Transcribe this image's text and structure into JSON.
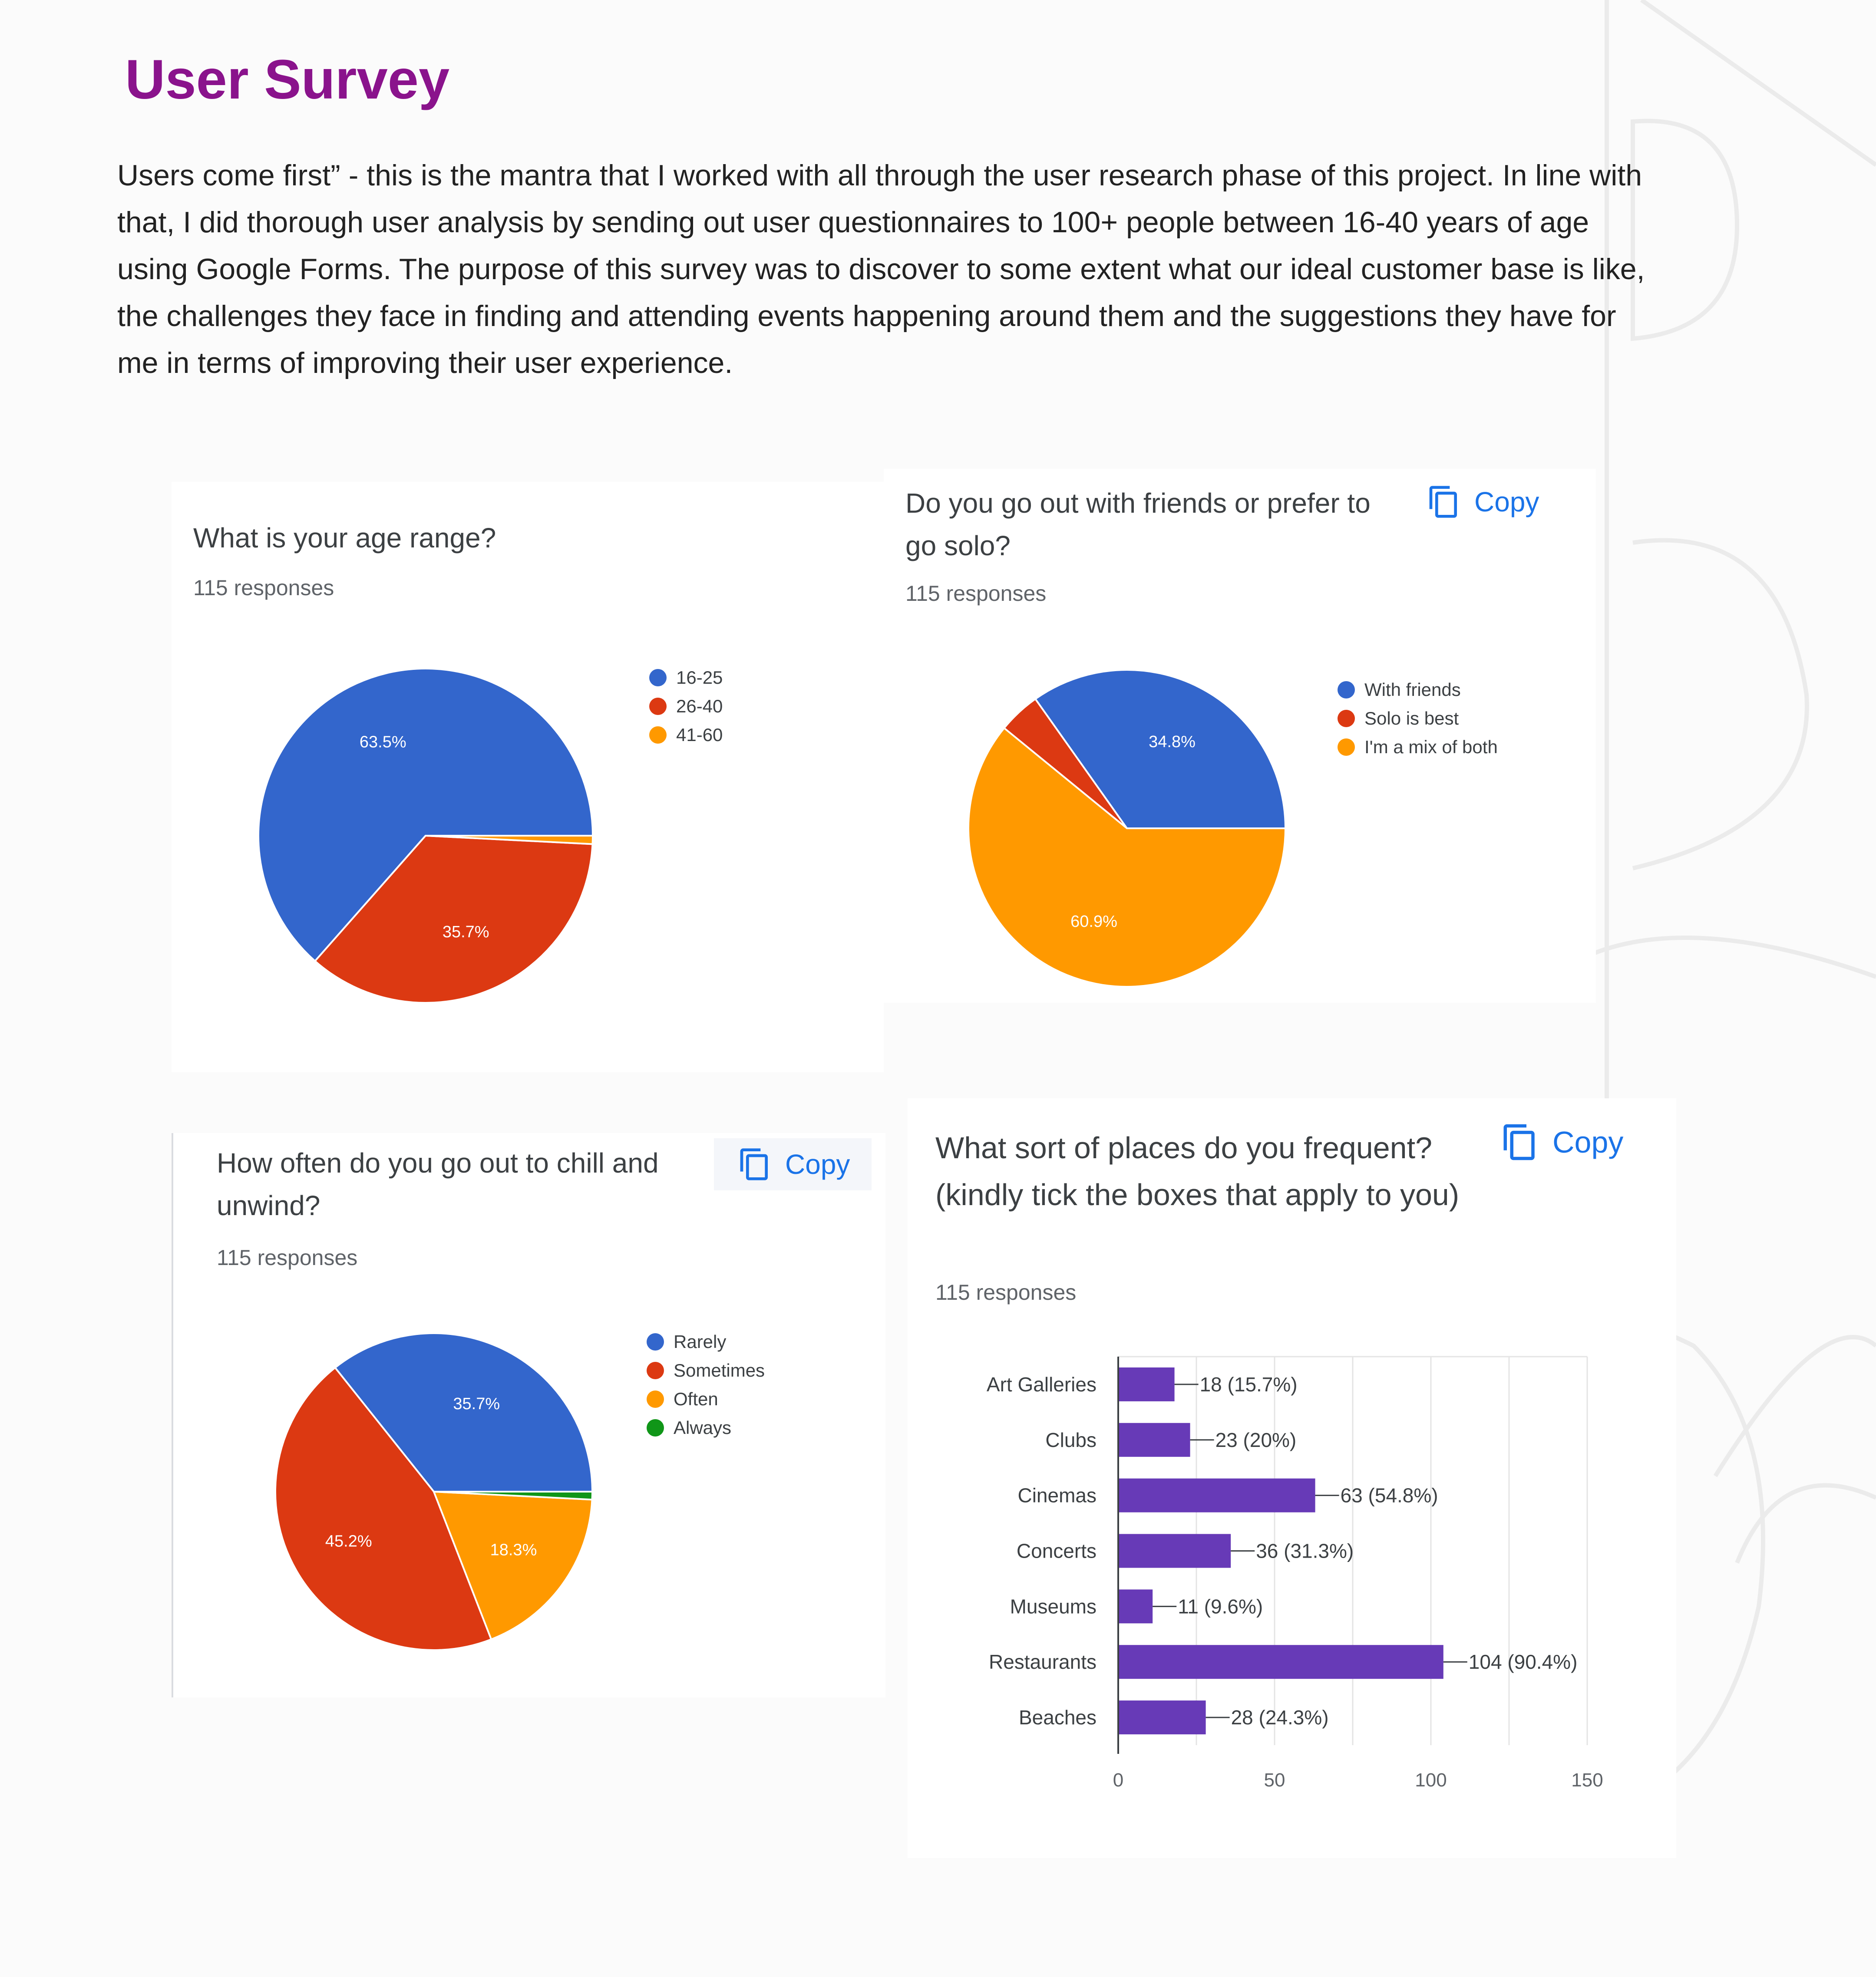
{
  "page": {
    "title": "User Survey",
    "intro": "Users come first” - this is the mantra that I worked with all through the user research phase of this project. In line with that, I did thorough user analysis by sending out user questionnaires to 100+ people between 16-40 years of age using Google Forms. The purpose of this survey was to discover to some extent what our ideal customer base is like, the challenges they face in finding and attending events happening around them and the suggestions they have for me in terms of improving their user experience."
  },
  "copy_label": "Copy",
  "icons": {
    "copy": "copy-icon"
  },
  "chart_data": [
    {
      "type": "pie",
      "question": "What is your age range?",
      "responses": "115 responses",
      "labels": [
        "16-25",
        "26-40",
        "41-60"
      ],
      "values": [
        63.5,
        35.7,
        0.8
      ],
      "value_labels": [
        "63.5%",
        "35.7%",
        ""
      ],
      "colors": [
        "#3366cc",
        "#dc3912",
        "#ff9900"
      ],
      "has_copy": false
    },
    {
      "type": "pie",
      "question": "Do you go out with friends or prefer to go solo?",
      "responses": "115 responses",
      "labels": [
        "With friends",
        "Solo is best",
        "I'm a mix of both"
      ],
      "values": [
        34.8,
        4.3,
        60.9
      ],
      "value_labels": [
        "34.8%",
        "",
        "60.9%"
      ],
      "colors": [
        "#3366cc",
        "#dc3912",
        "#ff9900"
      ],
      "has_copy": true
    },
    {
      "type": "pie",
      "question": "How often do you go out to chill and unwind?",
      "responses": "115 responses",
      "labels": [
        "Rarely",
        "Sometimes",
        "Often",
        "Always"
      ],
      "values": [
        35.7,
        45.2,
        18.3,
        0.8
      ],
      "value_labels": [
        "35.7%",
        "45.2%",
        "18.3%",
        ""
      ],
      "colors": [
        "#3366cc",
        "#dc3912",
        "#ff9900",
        "#109618"
      ],
      "has_copy": true
    },
    {
      "type": "bar",
      "orientation": "horizontal",
      "question": "What sort of places do you frequent? (kindly tick the boxes that apply to you)",
      "responses": "115 responses",
      "categories": [
        "Art Galleries",
        "Clubs",
        "Cinemas",
        "Concerts",
        "Museums",
        "Restaurants",
        "Beaches"
      ],
      "values": [
        18,
        23,
        63,
        36,
        11,
        104,
        28
      ],
      "data_labels": [
        "18 (15.7%)",
        "23 (20%)",
        "63 (54.8%)",
        "36 (31.3%)",
        "11 (9.6%)",
        "104 (90.4%)",
        "28 (24.3%)"
      ],
      "xlim": [
        0,
        150
      ],
      "xticks": [
        0,
        50,
        100,
        150
      ],
      "color": "#673ab7",
      "has_copy": true
    }
  ]
}
